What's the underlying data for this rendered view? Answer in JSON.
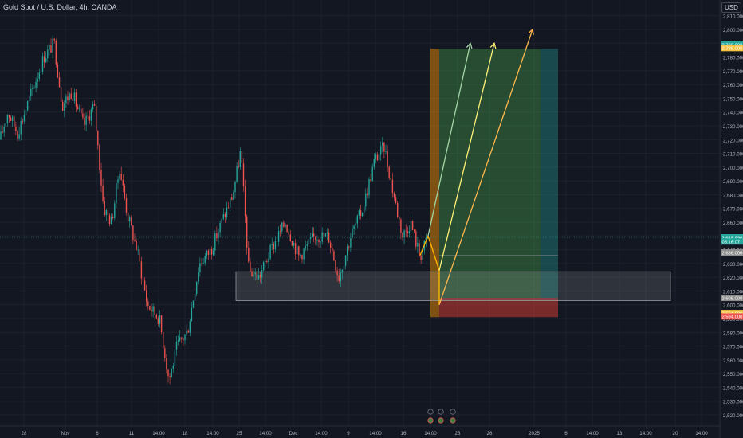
{
  "header": {
    "title": "Gold Spot / U.S. Dollar, 4h, OANDA",
    "currency": "USD"
  },
  "colors": {
    "background": "#131722",
    "grid": "#1e222d",
    "up": "#26a69a",
    "down": "#ef5350",
    "axis_text": "#b2b5be",
    "profit_zone": "#4caf50",
    "loss_zone": "#f44336",
    "entry_zone": "#ff9800",
    "arrow_light": "#a5d6a7",
    "arrow_yellow": "#fff176",
    "arrow_orange": "#ffb74d",
    "supply_box": "#ffffff"
  },
  "chart_data": {
    "type": "candlestick",
    "symbol": "XAUUSD",
    "timeframe": "4h",
    "ylim": [
      2515,
      2815
    ],
    "y_ticks": [
      2520,
      2530,
      2540,
      2550,
      2560,
      2570,
      2580,
      2590,
      2600,
      2610,
      2620,
      2630,
      2640,
      2650,
      2660,
      2670,
      2680,
      2690,
      2700,
      2710,
      2720,
      2730,
      2740,
      2750,
      2760,
      2770,
      2780,
      2790,
      2800,
      2810
    ],
    "x_ticks": [
      {
        "label": "28",
        "x": 30
      },
      {
        "label": "Nov",
        "x": 82
      },
      {
        "label": "6",
        "x": 122
      },
      {
        "label": "11",
        "x": 165
      },
      {
        "label": "14:00",
        "x": 199
      },
      {
        "label": "18",
        "x": 232
      },
      {
        "label": "14:00",
        "x": 267
      },
      {
        "label": "25",
        "x": 300
      },
      {
        "label": "14:00",
        "x": 333
      },
      {
        "label": "Dec",
        "x": 368
      },
      {
        "label": "14:00",
        "x": 403
      },
      {
        "label": "9",
        "x": 437
      },
      {
        "label": "14:00",
        "x": 471
      },
      {
        "label": "16",
        "x": 506
      },
      {
        "label": "14:00",
        "x": 540
      },
      {
        "label": "23",
        "x": 574
      },
      {
        "label": "26",
        "x": 614
      },
      {
        "label": "2025",
        "x": 670
      },
      {
        "label": "6",
        "x": 710
      },
      {
        "label": "14:00",
        "x": 743
      },
      {
        "label": "13",
        "x": 777
      },
      {
        "label": "14:00",
        "x": 810
      },
      {
        "label": "20",
        "x": 847
      },
      {
        "label": "14:00",
        "x": 880
      }
    ],
    "price_labels": [
      {
        "value": "2,789.000",
        "price": 2789,
        "color": "#26a69a"
      },
      {
        "value": "2,788.000",
        "price": 2786.5,
        "color": "#f5c242"
      },
      {
        "value": "2,648.990",
        "price": 2649,
        "color": "#26a69a"
      },
      {
        "value": "03:16:07",
        "price": 2646,
        "color": "#26a69a"
      },
      {
        "value": "2,636.000",
        "price": 2638,
        "color": "#8d8d8d"
      },
      {
        "value": "2,605.000",
        "price": 2605,
        "color": "#8d8d8d"
      },
      {
        "value": "2,594.000",
        "price": 2594,
        "color": "#f5c242"
      },
      {
        "value": "2,594.000",
        "price": 2591.5,
        "color": "#ef5350"
      }
    ],
    "anchors": [
      {
        "x": 0,
        "p": 2720
      },
      {
        "x": 10,
        "p": 2740
      },
      {
        "x": 22,
        "p": 2725
      },
      {
        "x": 40,
        "p": 2755
      },
      {
        "x": 55,
        "p": 2780
      },
      {
        "x": 68,
        "p": 2790
      },
      {
        "x": 78,
        "p": 2745
      },
      {
        "x": 90,
        "p": 2755
      },
      {
        "x": 105,
        "p": 2730
      },
      {
        "x": 118,
        "p": 2745
      },
      {
        "x": 130,
        "p": 2670
      },
      {
        "x": 140,
        "p": 2660
      },
      {
        "x": 150,
        "p": 2700
      },
      {
        "x": 160,
        "p": 2665
      },
      {
        "x": 172,
        "p": 2640
      },
      {
        "x": 185,
        "p": 2600
      },
      {
        "x": 200,
        "p": 2590
      },
      {
        "x": 212,
        "p": 2545
      },
      {
        "x": 222,
        "p": 2570
      },
      {
        "x": 235,
        "p": 2580
      },
      {
        "x": 250,
        "p": 2630
      },
      {
        "x": 265,
        "p": 2640
      },
      {
        "x": 278,
        "p": 2660
      },
      {
        "x": 292,
        "p": 2680
      },
      {
        "x": 302,
        "p": 2712
      },
      {
        "x": 312,
        "p": 2625
      },
      {
        "x": 325,
        "p": 2620
      },
      {
        "x": 340,
        "p": 2640
      },
      {
        "x": 358,
        "p": 2660
      },
      {
        "x": 375,
        "p": 2635
      },
      {
        "x": 395,
        "p": 2650
      },
      {
        "x": 412,
        "p": 2650
      },
      {
        "x": 425,
        "p": 2620
      },
      {
        "x": 440,
        "p": 2650
      },
      {
        "x": 455,
        "p": 2670
      },
      {
        "x": 470,
        "p": 2705
      },
      {
        "x": 482,
        "p": 2715
      },
      {
        "x": 492,
        "p": 2685
      },
      {
        "x": 505,
        "p": 2650
      },
      {
        "x": 515,
        "p": 2660
      },
      {
        "x": 527,
        "p": 2635
      },
      {
        "x": 537,
        "p": 2650
      }
    ],
    "zones": {
      "entry_strip": {
        "x0": 540,
        "x1": 551,
        "p_top": 2786,
        "p_bot": 2591
      },
      "profit": {
        "x0": 551,
        "x1": 678,
        "p_top": 2786,
        "p_bot": 2605
      },
      "profit_teal": {
        "x0": 678,
        "x1": 700,
        "p_top": 2786,
        "p_bot": 2605
      },
      "loss": {
        "x0": 551,
        "x1": 700,
        "p_top": 2605,
        "p_bot": 2591
      },
      "supply_box": {
        "x0": 296,
        "x1": 841,
        "p_top": 2624,
        "p_bot": 2603
      }
    },
    "projection": [
      {
        "x": 527,
        "p": 2636
      },
      {
        "x": 537,
        "p": 2650
      },
      {
        "x": 551,
        "p": 2625
      },
      {
        "x": 551,
        "p": 2600
      }
    ],
    "arrows": [
      {
        "from": {
          "x": 537,
          "p": 2650
        },
        "to": {
          "x": 590,
          "p": 2790
        },
        "color": "#a5d6a7"
      },
      {
        "from": {
          "x": 551,
          "p": 2625
        },
        "to": {
          "x": 620,
          "p": 2790
        },
        "color": "#fff176"
      },
      {
        "from": {
          "x": 551,
          "p": 2600
        },
        "to": {
          "x": 668,
          "p": 2800
        },
        "color": "#ffb74d"
      }
    ],
    "events": [
      {
        "x": 540,
        "label": "E"
      },
      {
        "x": 553,
        "label": "●"
      },
      {
        "x": 568,
        "label": "●"
      }
    ]
  }
}
